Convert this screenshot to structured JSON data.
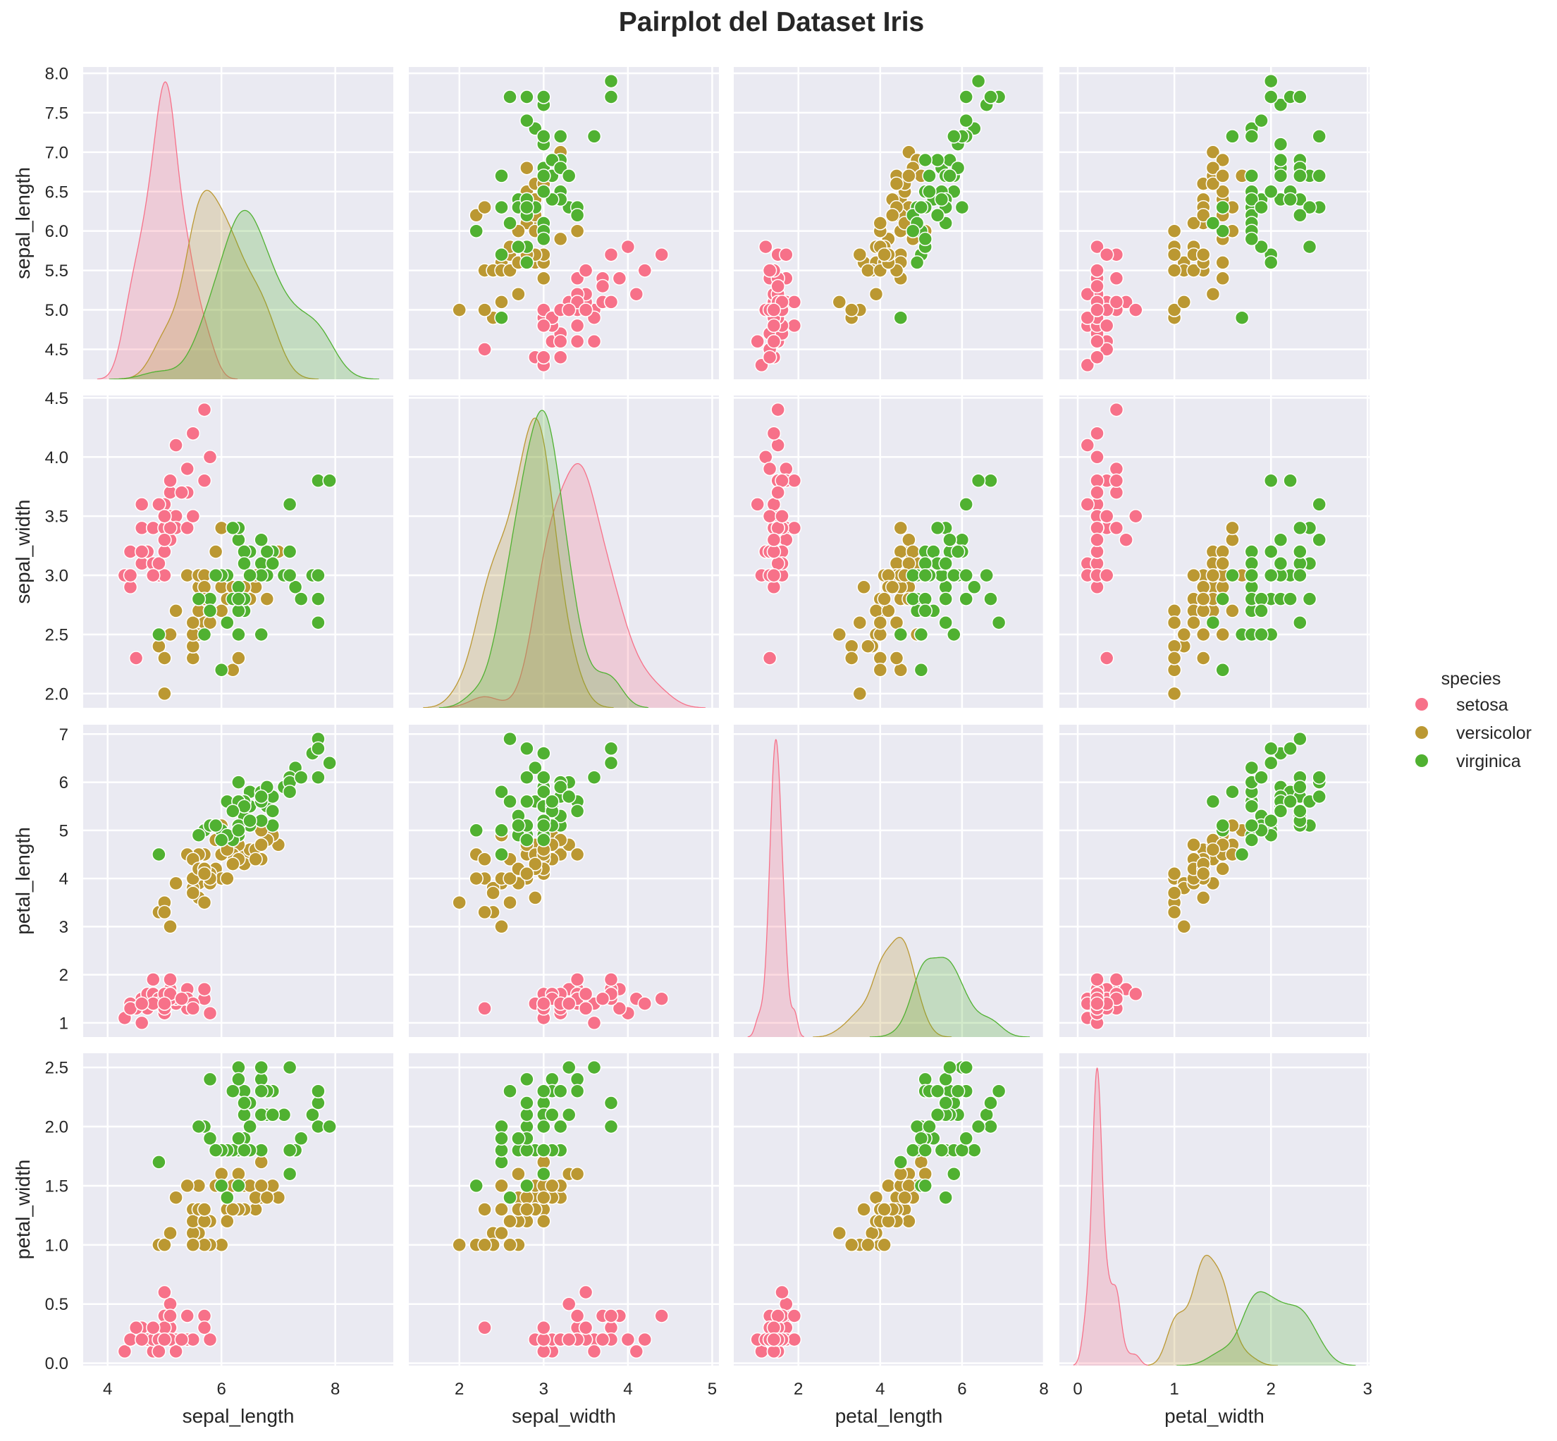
{
  "title": "Pairplot del Dataset Iris",
  "chart_data": {
    "type": "scatter",
    "kind": "pairplot",
    "diag_kind": "kde",
    "title": "Pairplot del Dataset Iris",
    "variables": [
      "sepal_length",
      "sepal_width",
      "petal_length",
      "petal_width"
    ],
    "hue": "species",
    "grid": true,
    "background": "#eaeaf2",
    "colors": {
      "setosa": "#f77189",
      "versicolor": "#bb9832",
      "virginica": "#50b131"
    },
    "legend": {
      "title": "species",
      "position": "right",
      "entries": [
        "setosa",
        "versicolor",
        "virginica"
      ]
    },
    "x_ranges": {
      "sepal_length": [
        3.57,
        9.02
      ],
      "sepal_width": [
        1.4,
        5.08
      ],
      "petal_length": [
        0.42,
        8.0
      ],
      "petal_width": [
        -0.19,
        3.02
      ]
    },
    "y_ranges": {
      "sepal_length": [
        4.12,
        8.08
      ],
      "sepal_width": [
        1.88,
        4.52
      ],
      "petal_length": [
        0.705,
        7.195
      ],
      "petal_width": [
        -0.02,
        2.62
      ]
    },
    "x_ticks": {
      "sepal_length": [
        "4",
        "6",
        "8"
      ],
      "sepal_width": [
        "2",
        "3",
        "4",
        "5"
      ],
      "petal_length": [
        "2",
        "4",
        "6",
        "8"
      ],
      "petal_width": [
        "0",
        "1",
        "2",
        "3"
      ]
    },
    "y_ticks": {
      "sepal_length": [
        "4.5",
        "5.0",
        "5.5",
        "6.0",
        "6.5",
        "7.0",
        "7.5",
        "8.0"
      ],
      "sepal_width": [
        "2.0",
        "2.5",
        "3.0",
        "3.5",
        "4.0",
        "4.5"
      ],
      "petal_length": [
        "1",
        "2",
        "3",
        "4",
        "5",
        "6",
        "7"
      ],
      "petal_width": [
        "0.0",
        "0.5",
        "1.0",
        "1.5",
        "2.0",
        "2.5"
      ]
    },
    "columns": [
      "sepal_length",
      "sepal_width",
      "petal_length",
      "petal_width",
      "species"
    ],
    "rows": [
      [
        5.1,
        3.5,
        1.4,
        0.2,
        "setosa"
      ],
      [
        4.9,
        3.0,
        1.4,
        0.2,
        "setosa"
      ],
      [
        4.7,
        3.2,
        1.3,
        0.2,
        "setosa"
      ],
      [
        4.6,
        3.1,
        1.5,
        0.2,
        "setosa"
      ],
      [
        5.0,
        3.6,
        1.4,
        0.2,
        "setosa"
      ],
      [
        5.4,
        3.9,
        1.7,
        0.4,
        "setosa"
      ],
      [
        4.6,
        3.4,
        1.4,
        0.3,
        "setosa"
      ],
      [
        5.0,
        3.4,
        1.5,
        0.2,
        "setosa"
      ],
      [
        4.4,
        2.9,
        1.4,
        0.2,
        "setosa"
      ],
      [
        4.9,
        3.1,
        1.5,
        0.1,
        "setosa"
      ],
      [
        5.4,
        3.7,
        1.5,
        0.2,
        "setosa"
      ],
      [
        4.8,
        3.4,
        1.6,
        0.2,
        "setosa"
      ],
      [
        4.8,
        3.0,
        1.4,
        0.1,
        "setosa"
      ],
      [
        4.3,
        3.0,
        1.1,
        0.1,
        "setosa"
      ],
      [
        5.8,
        4.0,
        1.2,
        0.2,
        "setosa"
      ],
      [
        5.7,
        4.4,
        1.5,
        0.4,
        "setosa"
      ],
      [
        5.4,
        3.9,
        1.3,
        0.4,
        "setosa"
      ],
      [
        5.1,
        3.5,
        1.4,
        0.3,
        "setosa"
      ],
      [
        5.7,
        3.8,
        1.7,
        0.3,
        "setosa"
      ],
      [
        5.1,
        3.8,
        1.5,
        0.3,
        "setosa"
      ],
      [
        5.4,
        3.4,
        1.7,
        0.2,
        "setosa"
      ],
      [
        5.1,
        3.7,
        1.5,
        0.4,
        "setosa"
      ],
      [
        4.6,
        3.6,
        1.0,
        0.2,
        "setosa"
      ],
      [
        5.1,
        3.3,
        1.7,
        0.5,
        "setosa"
      ],
      [
        4.8,
        3.4,
        1.9,
        0.2,
        "setosa"
      ],
      [
        5.0,
        3.0,
        1.6,
        0.2,
        "setosa"
      ],
      [
        5.0,
        3.4,
        1.6,
        0.4,
        "setosa"
      ],
      [
        5.2,
        3.5,
        1.5,
        0.2,
        "setosa"
      ],
      [
        5.2,
        3.4,
        1.4,
        0.2,
        "setosa"
      ],
      [
        4.7,
        3.2,
        1.6,
        0.2,
        "setosa"
      ],
      [
        4.8,
        3.1,
        1.6,
        0.2,
        "setosa"
      ],
      [
        5.4,
        3.4,
        1.5,
        0.4,
        "setosa"
      ],
      [
        5.2,
        4.1,
        1.5,
        0.1,
        "setosa"
      ],
      [
        5.5,
        4.2,
        1.4,
        0.2,
        "setosa"
      ],
      [
        4.9,
        3.1,
        1.5,
        0.2,
        "setosa"
      ],
      [
        5.0,
        3.2,
        1.2,
        0.2,
        "setosa"
      ],
      [
        5.5,
        3.5,
        1.3,
        0.2,
        "setosa"
      ],
      [
        4.9,
        3.6,
        1.4,
        0.1,
        "setosa"
      ],
      [
        4.4,
        3.0,
        1.3,
        0.2,
        "setosa"
      ],
      [
        5.1,
        3.4,
        1.5,
        0.2,
        "setosa"
      ],
      [
        5.0,
        3.5,
        1.3,
        0.3,
        "setosa"
      ],
      [
        4.5,
        2.3,
        1.3,
        0.3,
        "setosa"
      ],
      [
        4.4,
        3.2,
        1.3,
        0.2,
        "setosa"
      ],
      [
        5.0,
        3.5,
        1.6,
        0.6,
        "setosa"
      ],
      [
        5.1,
        3.8,
        1.9,
        0.4,
        "setosa"
      ],
      [
        4.8,
        3.0,
        1.4,
        0.3,
        "setosa"
      ],
      [
        5.1,
        3.8,
        1.6,
        0.2,
        "setosa"
      ],
      [
        4.6,
        3.2,
        1.4,
        0.2,
        "setosa"
      ],
      [
        5.3,
        3.7,
        1.5,
        0.2,
        "setosa"
      ],
      [
        5.0,
        3.3,
        1.4,
        0.2,
        "setosa"
      ],
      [
        7.0,
        3.2,
        4.7,
        1.4,
        "versicolor"
      ],
      [
        6.4,
        3.2,
        4.5,
        1.5,
        "versicolor"
      ],
      [
        6.9,
        3.1,
        4.9,
        1.5,
        "versicolor"
      ],
      [
        5.5,
        2.3,
        4.0,
        1.3,
        "versicolor"
      ],
      [
        6.5,
        2.8,
        4.6,
        1.5,
        "versicolor"
      ],
      [
        5.7,
        2.8,
        4.5,
        1.3,
        "versicolor"
      ],
      [
        6.3,
        3.3,
        4.7,
        1.6,
        "versicolor"
      ],
      [
        4.9,
        2.4,
        3.3,
        1.0,
        "versicolor"
      ],
      [
        6.6,
        2.9,
        4.6,
        1.3,
        "versicolor"
      ],
      [
        5.2,
        2.7,
        3.9,
        1.4,
        "versicolor"
      ],
      [
        5.0,
        2.0,
        3.5,
        1.0,
        "versicolor"
      ],
      [
        5.9,
        3.0,
        4.2,
        1.5,
        "versicolor"
      ],
      [
        6.0,
        2.2,
        4.0,
        1.0,
        "versicolor"
      ],
      [
        6.1,
        2.9,
        4.7,
        1.4,
        "versicolor"
      ],
      [
        5.6,
        2.9,
        3.6,
        1.3,
        "versicolor"
      ],
      [
        6.7,
        3.1,
        4.4,
        1.4,
        "versicolor"
      ],
      [
        5.6,
        3.0,
        4.5,
        1.5,
        "versicolor"
      ],
      [
        5.8,
        2.7,
        4.1,
        1.0,
        "versicolor"
      ],
      [
        6.2,
        2.2,
        4.5,
        1.5,
        "versicolor"
      ],
      [
        5.6,
        2.5,
        3.9,
        1.1,
        "versicolor"
      ],
      [
        5.9,
        3.2,
        4.8,
        1.8,
        "versicolor"
      ],
      [
        6.1,
        2.8,
        4.0,
        1.3,
        "versicolor"
      ],
      [
        6.3,
        2.5,
        4.9,
        1.5,
        "versicolor"
      ],
      [
        6.1,
        2.8,
        4.7,
        1.2,
        "versicolor"
      ],
      [
        6.4,
        2.9,
        4.3,
        1.3,
        "versicolor"
      ],
      [
        6.6,
        3.0,
        4.4,
        1.4,
        "versicolor"
      ],
      [
        6.8,
        2.8,
        4.8,
        1.4,
        "versicolor"
      ],
      [
        6.7,
        3.0,
        5.0,
        1.7,
        "versicolor"
      ],
      [
        6.0,
        2.9,
        4.5,
        1.5,
        "versicolor"
      ],
      [
        5.7,
        2.6,
        3.5,
        1.0,
        "versicolor"
      ],
      [
        5.5,
        2.4,
        3.8,
        1.1,
        "versicolor"
      ],
      [
        5.5,
        2.4,
        3.7,
        1.0,
        "versicolor"
      ],
      [
        5.8,
        2.7,
        3.9,
        1.2,
        "versicolor"
      ],
      [
        6.0,
        2.7,
        5.1,
        1.6,
        "versicolor"
      ],
      [
        5.4,
        3.0,
        4.5,
        1.5,
        "versicolor"
      ],
      [
        6.0,
        3.4,
        4.5,
        1.6,
        "versicolor"
      ],
      [
        6.7,
        3.1,
        4.7,
        1.5,
        "versicolor"
      ],
      [
        6.3,
        2.3,
        4.4,
        1.3,
        "versicolor"
      ],
      [
        5.6,
        3.0,
        4.1,
        1.3,
        "versicolor"
      ],
      [
        5.5,
        2.5,
        4.0,
        1.3,
        "versicolor"
      ],
      [
        5.5,
        2.6,
        4.4,
        1.2,
        "versicolor"
      ],
      [
        6.1,
        3.0,
        4.6,
        1.4,
        "versicolor"
      ],
      [
        5.8,
        2.6,
        4.0,
        1.2,
        "versicolor"
      ],
      [
        5.0,
        2.3,
        3.3,
        1.0,
        "versicolor"
      ],
      [
        5.6,
        2.7,
        4.2,
        1.3,
        "versicolor"
      ],
      [
        5.7,
        3.0,
        4.2,
        1.2,
        "versicolor"
      ],
      [
        5.7,
        2.9,
        4.2,
        1.3,
        "versicolor"
      ],
      [
        6.2,
        2.9,
        4.3,
        1.3,
        "versicolor"
      ],
      [
        5.1,
        2.5,
        3.0,
        1.1,
        "versicolor"
      ],
      [
        5.7,
        2.8,
        4.1,
        1.3,
        "versicolor"
      ],
      [
        6.3,
        3.3,
        6.0,
        2.5,
        "virginica"
      ],
      [
        5.8,
        2.7,
        5.1,
        1.9,
        "virginica"
      ],
      [
        7.1,
        3.0,
        5.9,
        2.1,
        "virginica"
      ],
      [
        6.3,
        2.9,
        5.6,
        1.8,
        "virginica"
      ],
      [
        6.5,
        3.0,
        5.8,
        2.2,
        "virginica"
      ],
      [
        7.6,
        3.0,
        6.6,
        2.1,
        "virginica"
      ],
      [
        4.9,
        2.5,
        4.5,
        1.7,
        "virginica"
      ],
      [
        7.3,
        2.9,
        6.3,
        1.8,
        "virginica"
      ],
      [
        6.7,
        2.5,
        5.8,
        1.8,
        "virginica"
      ],
      [
        7.2,
        3.6,
        6.1,
        2.5,
        "virginica"
      ],
      [
        6.5,
        3.2,
        5.1,
        2.0,
        "virginica"
      ],
      [
        6.4,
        2.7,
        5.3,
        1.9,
        "virginica"
      ],
      [
        6.8,
        3.0,
        5.5,
        2.1,
        "virginica"
      ],
      [
        5.7,
        2.5,
        5.0,
        2.0,
        "virginica"
      ],
      [
        5.8,
        2.8,
        5.1,
        2.4,
        "virginica"
      ],
      [
        6.4,
        3.2,
        5.3,
        2.3,
        "virginica"
      ],
      [
        6.5,
        3.0,
        5.5,
        1.8,
        "virginica"
      ],
      [
        7.7,
        3.8,
        6.7,
        2.2,
        "virginica"
      ],
      [
        7.7,
        2.6,
        6.9,
        2.3,
        "virginica"
      ],
      [
        6.0,
        2.2,
        5.0,
        1.5,
        "virginica"
      ],
      [
        6.9,
        3.2,
        5.7,
        2.3,
        "virginica"
      ],
      [
        5.6,
        2.8,
        4.9,
        2.0,
        "virginica"
      ],
      [
        7.7,
        2.8,
        6.7,
        2.0,
        "virginica"
      ],
      [
        6.3,
        2.7,
        4.9,
        1.8,
        "virginica"
      ],
      [
        6.7,
        3.3,
        5.7,
        2.1,
        "virginica"
      ],
      [
        7.2,
        3.2,
        6.0,
        1.8,
        "virginica"
      ],
      [
        6.2,
        2.8,
        4.8,
        1.8,
        "virginica"
      ],
      [
        6.1,
        3.0,
        4.9,
        1.8,
        "virginica"
      ],
      [
        6.4,
        2.8,
        5.6,
        2.1,
        "virginica"
      ],
      [
        7.2,
        3.0,
        5.8,
        1.6,
        "virginica"
      ],
      [
        7.4,
        2.8,
        6.1,
        1.9,
        "virginica"
      ],
      [
        7.9,
        3.8,
        6.4,
        2.0,
        "virginica"
      ],
      [
        6.4,
        2.8,
        5.6,
        2.2,
        "virginica"
      ],
      [
        6.3,
        2.8,
        5.1,
        1.5,
        "virginica"
      ],
      [
        6.1,
        2.6,
        5.6,
        1.4,
        "virginica"
      ],
      [
        7.7,
        3.0,
        6.1,
        2.3,
        "virginica"
      ],
      [
        6.3,
        3.4,
        5.6,
        2.4,
        "virginica"
      ],
      [
        6.4,
        3.1,
        5.5,
        1.8,
        "virginica"
      ],
      [
        6.0,
        3.0,
        4.8,
        1.8,
        "virginica"
      ],
      [
        6.9,
        3.1,
        5.4,
        2.1,
        "virginica"
      ],
      [
        6.7,
        3.1,
        5.6,
        2.4,
        "virginica"
      ],
      [
        6.9,
        3.1,
        5.1,
        2.3,
        "virginica"
      ],
      [
        5.8,
        2.7,
        5.1,
        1.9,
        "virginica"
      ],
      [
        6.8,
        3.2,
        5.9,
        2.3,
        "virginica"
      ],
      [
        6.7,
        3.3,
        5.7,
        2.5,
        "virginica"
      ],
      [
        6.7,
        3.0,
        5.2,
        2.3,
        "virginica"
      ],
      [
        6.3,
        2.5,
        5.0,
        1.9,
        "virginica"
      ],
      [
        6.5,
        3.0,
        5.2,
        2.0,
        "virginica"
      ],
      [
        6.2,
        3.4,
        5.4,
        2.3,
        "virginica"
      ],
      [
        5.9,
        3.0,
        5.1,
        1.8,
        "virginica"
      ]
    ]
  }
}
